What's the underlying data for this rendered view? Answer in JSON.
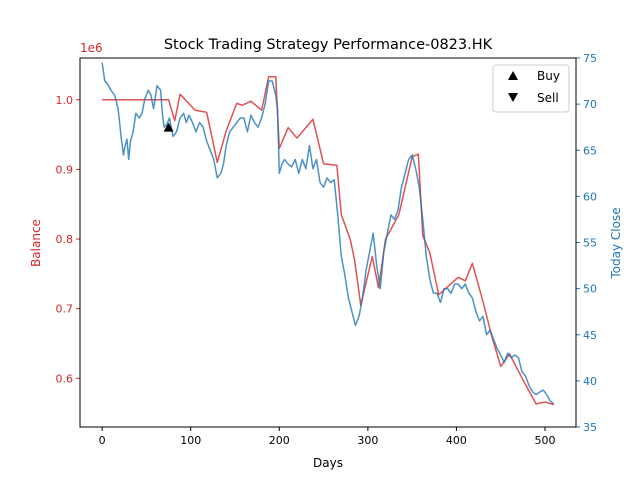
{
  "chart_data": {
    "type": "line",
    "title": "Stock Trading Strategy Performance-0823.HK",
    "xlabel": "Days",
    "ylabel_left": "Balance",
    "ylabel_right": "Today Close",
    "left_offset_text": "1e6",
    "xlim": [
      -25,
      535
    ],
    "ylim_left": [
      0.53,
      1.06
    ],
    "ylim_right": [
      35,
      75
    ],
    "x_ticks": [
      0,
      100,
      200,
      300,
      400,
      500
    ],
    "left_ticks": [
      0.6,
      0.7,
      0.8,
      0.9,
      1.0
    ],
    "right_ticks": [
      35,
      40,
      45,
      50,
      55,
      60,
      65,
      70,
      75
    ],
    "colors": {
      "balance": "#d62728",
      "close": "#1f77b4",
      "marker": "#000000"
    },
    "legend": {
      "placement": "top-right",
      "entries": [
        {
          "label": "Buy",
          "marker": "triangle-up"
        },
        {
          "label": "Sell",
          "marker": "triangle-down"
        }
      ]
    },
    "series": [
      {
        "name": "Balance",
        "axis": "left",
        "x": [
          0,
          60,
          65,
          75,
          82,
          88,
          105,
          118,
          130,
          140,
          152,
          158,
          168,
          180,
          188,
          196,
          200,
          210,
          220,
          238,
          250,
          265,
          270,
          280,
          285,
          292,
          305,
          312,
          320,
          335,
          350,
          357,
          362,
          370,
          380,
          402,
          410,
          418,
          430,
          440,
          450,
          460,
          475,
          490,
          500,
          510
        ],
        "values": [
          1.0,
          1.0,
          1.0,
          1.0,
          0.97,
          1.008,
          0.985,
          0.982,
          0.91,
          0.955,
          0.995,
          0.992,
          0.998,
          0.985,
          1.033,
          1.033,
          0.93,
          0.96,
          0.945,
          0.972,
          0.908,
          0.906,
          0.835,
          0.8,
          0.77,
          0.705,
          0.775,
          0.73,
          0.8,
          0.835,
          0.918,
          0.922,
          0.805,
          0.78,
          0.72,
          0.745,
          0.74,
          0.765,
          0.71,
          0.66,
          0.617,
          0.635,
          0.598,
          0.563,
          0.566,
          0.562
        ]
      },
      {
        "name": "Today Close",
        "axis": "right",
        "x": [
          0,
          3,
          6,
          10,
          14,
          18,
          22,
          24,
          26,
          28,
          30,
          32,
          35,
          38,
          42,
          45,
          48,
          52,
          55,
          58,
          62,
          66,
          68,
          70,
          73,
          76,
          80,
          84,
          88,
          92,
          95,
          98,
          102,
          106,
          110,
          114,
          118,
          122,
          126,
          130,
          134,
          137,
          140,
          144,
          148,
          152,
          156,
          160,
          164,
          168,
          172,
          176,
          180,
          184,
          188,
          192,
          196,
          198,
          200,
          203,
          206,
          210,
          214,
          218,
          222,
          226,
          230,
          234,
          238,
          242,
          246,
          250,
          254,
          258,
          262,
          266,
          270,
          274,
          278,
          282,
          286,
          290,
          294,
          298,
          302,
          306,
          310,
          314,
          318,
          322,
          326,
          330,
          334,
          338,
          342,
          346,
          350,
          354,
          358,
          362,
          366,
          370,
          374,
          378,
          382,
          386,
          390,
          394,
          398,
          402,
          406,
          410,
          414,
          418,
          422,
          426,
          430,
          434,
          438,
          442,
          446,
          450,
          454,
          458,
          462,
          466,
          470,
          474,
          478,
          482,
          486,
          490,
          494,
          498,
          502,
          506,
          510
        ],
        "values": [
          74.5,
          72.5,
          72.2,
          71.5,
          71.0,
          69.5,
          66.0,
          64.5,
          65.5,
          66.2,
          64.0,
          66.0,
          67.0,
          69.0,
          68.5,
          69.0,
          70.5,
          71.5,
          71.0,
          69.5,
          72.0,
          71.5,
          69.0,
          67.5,
          67.8,
          68.5,
          66.5,
          67.0,
          68.5,
          69.0,
          68.0,
          68.8,
          68.0,
          67.0,
          68.0,
          67.5,
          66.0,
          65.0,
          64.0,
          62.0,
          62.5,
          63.5,
          65.5,
          67.0,
          67.5,
          68.0,
          68.5,
          68.5,
          67.0,
          68.8,
          68.0,
          67.5,
          68.5,
          70.0,
          72.5,
          72.5,
          71.0,
          69.5,
          62.5,
          63.5,
          64.0,
          63.5,
          63.2,
          64.0,
          62.5,
          64.0,
          63.0,
          65.5,
          63.0,
          64.0,
          61.5,
          61.0,
          62.0,
          61.5,
          61.8,
          58.0,
          53.5,
          51.5,
          49.0,
          47.5,
          46.0,
          47.0,
          49.0,
          52.0,
          54.0,
          56.0,
          52.5,
          50.0,
          54.0,
          56.0,
          58.0,
          57.5,
          58.5,
          61.0,
          62.5,
          64.0,
          64.5,
          63.0,
          61.0,
          57.5,
          53.5,
          51.0,
          49.5,
          49.5,
          48.5,
          50.0,
          50.0,
          49.5,
          50.5,
          50.5,
          50.0,
          50.5,
          49.5,
          49.0,
          47.5,
          46.5,
          47.0,
          45.0,
          45.5,
          44.5,
          43.5,
          42.8,
          42.0,
          43.0,
          42.5,
          42.8,
          42.5,
          41.0,
          40.5,
          39.5,
          38.8,
          38.5,
          38.8,
          39.0,
          38.5,
          37.8,
          37.5
        ]
      }
    ],
    "markers": [
      {
        "type": "buy",
        "x": 75,
        "y": 0.96
      }
    ]
  }
}
